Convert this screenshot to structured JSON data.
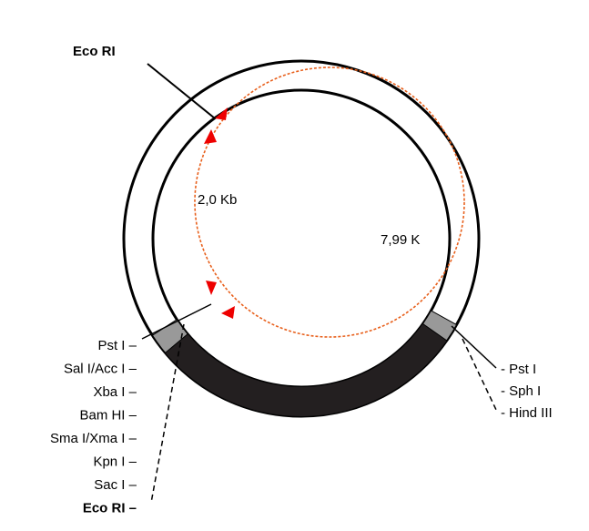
{
  "top_site": "Eco RI",
  "segment_labels": [
    "2,0 Kb",
    "7,99 K"
  ],
  "left_sites": [
    "Pst I –",
    "Sal I/Acc I –",
    "Xba I –",
    "Bam HI –",
    "Sma I/Xma I –",
    "Kpn I –",
    "Sac I –",
    "Eco RI –"
  ],
  "right_sites": [
    "- Pst I",
    "- Sph I",
    "- Hind III"
  ]
}
